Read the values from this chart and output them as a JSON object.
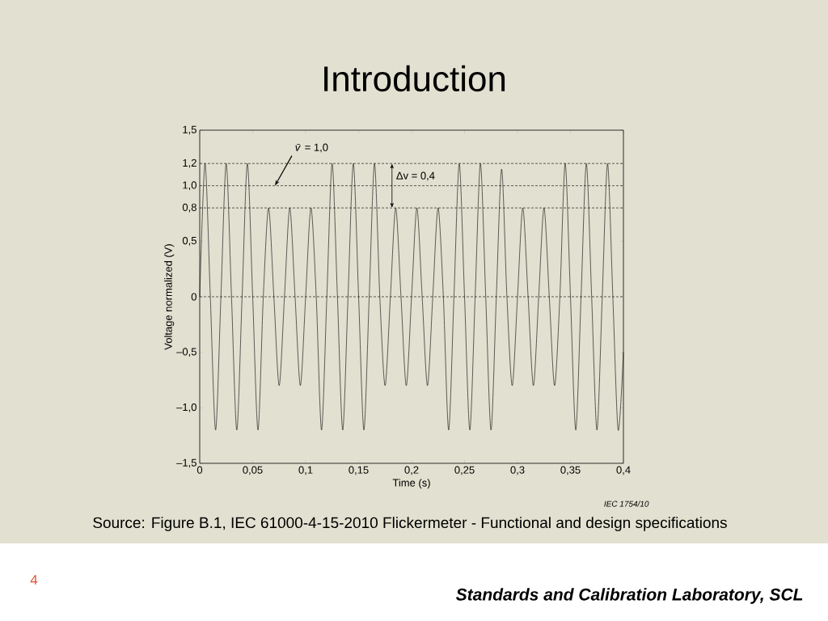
{
  "chart_data": {
    "type": "line",
    "title": "Introduction",
    "xlabel": "Time   (s)",
    "ylabel": "Voltage normalized   (V)",
    "annotations": [
      {
        "text": "*v̄* = 1,0",
        "x": 0.071,
        "y": 1.0
      },
      {
        "text": "Δv = 0,4",
        "x": 0.1815,
        "y": 1.0
      },
      "Source: Figure B.1, IEC 61000-4-15-2010 Flickermeter - Functional and design specifications",
      "IEC   1754/10",
      "4",
      "Standards and Calibration Laboratory, SCL"
    ],
    "x": [
      0,
      0.005,
      0.01,
      0.015,
      0.02,
      0.025,
      0.03,
      0.035,
      0.04,
      0.045,
      0.05,
      0.055,
      0.06,
      0.065,
      0.07,
      0.075,
      0.08,
      0.085,
      0.09,
      0.095,
      0.1,
      0.105,
      0.11,
      0.115,
      0.12,
      0.125,
      0.13,
      0.135,
      0.14,
      0.145,
      0.15,
      0.155,
      0.16,
      0.165,
      0.17,
      0.175,
      0.18,
      0.185,
      0.19,
      0.195,
      0.2,
      0.205,
      0.21,
      0.215,
      0.22,
      0.225,
      0.23,
      0.235,
      0.24,
      0.245,
      0.25,
      0.255,
      0.26,
      0.265,
      0.27,
      0.275,
      0.28,
      0.285,
      0.29,
      0.295,
      0.3,
      0.305,
      0.31,
      0.315,
      0.32,
      0.325,
      0.33,
      0.335,
      0.34,
      0.345,
      0.35,
      0.355,
      0.36,
      0.365,
      0.37,
      0.375,
      0.38,
      0.385,
      0.39,
      0.395,
      0.4
    ],
    "values": [
      0,
      1.2,
      0,
      -1.2,
      0,
      1.2,
      0,
      -1.2,
      0,
      1.2,
      0,
      -1.2,
      0,
      0.8,
      0,
      -0.8,
      0,
      0.8,
      0,
      -0.8,
      0,
      0.8,
      0,
      -1.2,
      0,
      1.2,
      0,
      -1.2,
      0,
      1.2,
      0,
      -1.2,
      0,
      1.2,
      0,
      -0.8,
      0,
      0.8,
      0,
      -0.8,
      0,
      0.8,
      0,
      -0.8,
      0,
      0.8,
      0,
      -1.2,
      0,
      1.2,
      0,
      -1.2,
      0,
      1.2,
      0,
      -1.2,
      0,
      1.15,
      0,
      -0.8,
      0,
      0.8,
      0,
      -0.8,
      0,
      0.8,
      0,
      -0.8,
      0,
      1.2,
      0,
      -1.2,
      0,
      1.2,
      0,
      -1.2,
      0,
      1.2,
      0,
      -1.2,
      -0.5
    ],
    "color": "#000000",
    "xlim": [
      0,
      0.4
    ],
    "ylim": [
      -1.5,
      1.5
    ],
    "xticks": [
      0,
      {
        "value": 0.05,
        "label": "0,05"
      },
      {
        "value": 0.1,
        "label": "0,1"
      },
      {
        "value": 0.15,
        "label": "0,15"
      },
      {
        "value": 0.2,
        "label": "0,2"
      },
      {
        "value": 0.25,
        "label": "0,25"
      },
      {
        "value": 0.3,
        "label": "0,3"
      },
      {
        "value": 0.35,
        "label": "0,35"
      },
      {
        "value": 0.4,
        "label": "0,4"
      }
    ],
    "yticks": [
      {
        "value": -1.5,
        "label": "–1,5"
      },
      {
        "value": -1.0,
        "label": "–1,0"
      },
      {
        "value": -0.5,
        "label": "–0,5"
      },
      0,
      {
        "value": 0.5,
        "label": "0,5"
      },
      {
        "value": 0.8,
        "label": "0,8"
      },
      {
        "value": 1.0,
        "label": "1,0"
      },
      {
        "value": 1.2,
        "label": "1,2"
      },
      {
        "value": 1.5,
        "label": "1,5"
      }
    ],
    "ref_lines": [
      {
        "axis": "y",
        "value": 1.2,
        "line_style": "dashed"
      },
      {
        "axis": "y",
        "value": 1.0,
        "line_style": "dashed"
      },
      {
        "axis": "y",
        "value": 0.8,
        "line_style": "dashed"
      },
      {
        "axis": "y",
        "value": 0,
        "line_style": "dashed"
      }
    ]
  }
}
